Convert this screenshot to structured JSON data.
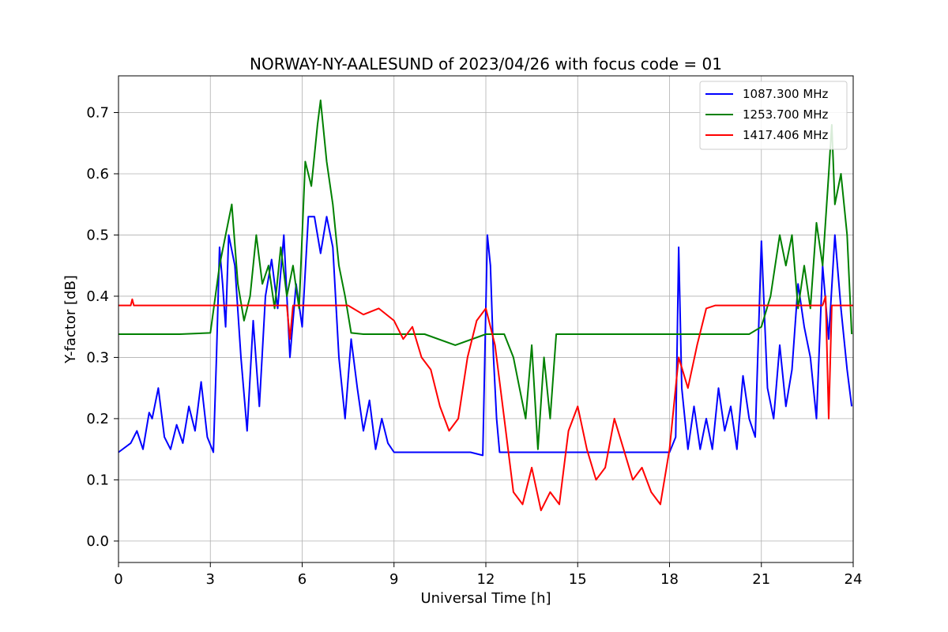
{
  "chart_data": {
    "type": "line",
    "title": "NORWAY-NY-AALESUND of 2023/04/26 with focus code = 01",
    "xlabel": "Universal Time [h]",
    "ylabel": "Y-factor [dB]",
    "xlim": [
      0,
      24
    ],
    "ylim": [
      -0.035,
      0.76
    ],
    "xticks": [
      0,
      3,
      6,
      9,
      12,
      15,
      18,
      21,
      24
    ],
    "xtick_labels": [
      "0",
      "3",
      "6",
      "9",
      "12",
      "15",
      "18",
      "21",
      "24"
    ],
    "yticks": [
      0.0,
      0.1,
      0.2,
      0.3,
      0.4,
      0.5,
      0.6,
      0.7
    ],
    "ytick_labels": [
      "0.0",
      "0.1",
      "0.2",
      "0.3",
      "0.4",
      "0.5",
      "0.6",
      "0.7"
    ],
    "grid": true,
    "legend_position": "top-right",
    "series": [
      {
        "name": "1087.300 MHz",
        "color": "#0000ff",
        "x": [
          0.0,
          0.4,
          0.6,
          0.8,
          1.0,
          1.1,
          1.3,
          1.5,
          1.7,
          1.9,
          2.1,
          2.3,
          2.5,
          2.7,
          2.9,
          3.1,
          3.2,
          3.3,
          3.4,
          3.5,
          3.6,
          3.8,
          4.0,
          4.2,
          4.4,
          4.6,
          4.8,
          5.0,
          5.2,
          5.4,
          5.6,
          5.8,
          6.0,
          6.2,
          6.4,
          6.6,
          6.8,
          7.0,
          7.2,
          7.4,
          7.6,
          7.8,
          8.0,
          8.2,
          8.4,
          8.6,
          8.8,
          9.0,
          10.0,
          11.0,
          11.5,
          11.9,
          12.05,
          12.15,
          12.25,
          12.35,
          12.45,
          12.6,
          13.0,
          14.0,
          15.0,
          16.0,
          17.0,
          17.5,
          17.8,
          18.0,
          18.2,
          18.3,
          18.4,
          18.6,
          18.8,
          19.0,
          19.2,
          19.4,
          19.6,
          19.8,
          20.0,
          20.2,
          20.4,
          20.6,
          20.8,
          21.0,
          21.2,
          21.4,
          21.6,
          21.8,
          22.0,
          22.2,
          22.4,
          22.6,
          22.8,
          23.0,
          23.2,
          23.4,
          23.6,
          23.8,
          23.95
        ],
        "y": [
          0.145,
          0.16,
          0.18,
          0.15,
          0.21,
          0.2,
          0.25,
          0.17,
          0.15,
          0.19,
          0.16,
          0.22,
          0.18,
          0.26,
          0.17,
          0.145,
          0.3,
          0.48,
          0.42,
          0.35,
          0.5,
          0.45,
          0.3,
          0.18,
          0.36,
          0.22,
          0.4,
          0.46,
          0.38,
          0.5,
          0.3,
          0.42,
          0.35,
          0.53,
          0.53,
          0.47,
          0.53,
          0.48,
          0.3,
          0.2,
          0.33,
          0.25,
          0.18,
          0.23,
          0.15,
          0.2,
          0.16,
          0.145,
          0.145,
          0.145,
          0.145,
          0.14,
          0.5,
          0.45,
          0.3,
          0.2,
          0.145,
          0.145,
          0.145,
          0.145,
          0.145,
          0.145,
          0.145,
          0.145,
          0.145,
          0.145,
          0.17,
          0.48,
          0.25,
          0.15,
          0.22,
          0.15,
          0.2,
          0.15,
          0.25,
          0.18,
          0.22,
          0.15,
          0.27,
          0.2,
          0.17,
          0.49,
          0.25,
          0.2,
          0.32,
          0.22,
          0.28,
          0.42,
          0.35,
          0.3,
          0.2,
          0.45,
          0.33,
          0.5,
          0.38,
          0.28,
          0.22
        ]
      },
      {
        "name": "1253.700 MHz",
        "color": "#008000",
        "x": [
          0.0,
          1.0,
          2.0,
          3.0,
          3.3,
          3.5,
          3.7,
          3.9,
          4.1,
          4.3,
          4.5,
          4.7,
          4.9,
          5.1,
          5.3,
          5.5,
          5.7,
          5.9,
          6.1,
          6.3,
          6.5,
          6.6,
          6.8,
          7.0,
          7.2,
          7.4,
          7.6,
          8.0,
          9.0,
          10.0,
          11.0,
          12.0,
          12.6,
          12.9,
          13.1,
          13.3,
          13.5,
          13.7,
          13.9,
          14.1,
          14.3,
          14.6,
          15.0,
          16.0,
          17.0,
          18.0,
          19.0,
          20.0,
          20.6,
          21.0,
          21.3,
          21.6,
          21.8,
          22.0,
          22.2,
          22.4,
          22.6,
          22.8,
          23.0,
          23.2,
          23.3,
          23.4,
          23.6,
          23.8,
          23.95
        ],
        "y": [
          0.338,
          0.338,
          0.338,
          0.34,
          0.45,
          0.5,
          0.55,
          0.42,
          0.36,
          0.4,
          0.5,
          0.42,
          0.45,
          0.38,
          0.48,
          0.4,
          0.45,
          0.38,
          0.62,
          0.58,
          0.68,
          0.72,
          0.62,
          0.55,
          0.45,
          0.4,
          0.34,
          0.338,
          0.338,
          0.338,
          0.32,
          0.338,
          0.338,
          0.3,
          0.25,
          0.2,
          0.32,
          0.15,
          0.3,
          0.2,
          0.338,
          0.338,
          0.338,
          0.338,
          0.338,
          0.338,
          0.338,
          0.338,
          0.338,
          0.35,
          0.4,
          0.5,
          0.45,
          0.5,
          0.38,
          0.45,
          0.38,
          0.52,
          0.45,
          0.6,
          0.68,
          0.55,
          0.6,
          0.5,
          0.338
        ]
      },
      {
        "name": "1417.406 MHz",
        "color": "#ff0000",
        "x": [
          0.0,
          0.4,
          0.45,
          0.5,
          3.0,
          5.5,
          5.6,
          5.7,
          6.0,
          7.0,
          7.5,
          8.0,
          8.5,
          9.0,
          9.3,
          9.6,
          9.9,
          10.2,
          10.5,
          10.8,
          11.1,
          11.4,
          11.7,
          12.0,
          12.3,
          12.6,
          12.9,
          13.2,
          13.5,
          13.8,
          14.1,
          14.4,
          14.7,
          15.0,
          15.3,
          15.6,
          15.9,
          16.2,
          16.5,
          16.8,
          17.1,
          17.4,
          17.7,
          18.0,
          18.3,
          18.6,
          18.9,
          19.2,
          19.5,
          19.8,
          20.2,
          21.0,
          22.0,
          23.0,
          23.1,
          23.2,
          23.3,
          23.6,
          24.0
        ],
        "y": [
          0.385,
          0.385,
          0.395,
          0.385,
          0.385,
          0.385,
          0.33,
          0.385,
          0.385,
          0.385,
          0.385,
          0.37,
          0.38,
          0.36,
          0.33,
          0.35,
          0.3,
          0.28,
          0.22,
          0.18,
          0.2,
          0.3,
          0.36,
          0.38,
          0.32,
          0.2,
          0.08,
          0.06,
          0.12,
          0.05,
          0.08,
          0.06,
          0.18,
          0.22,
          0.15,
          0.1,
          0.12,
          0.2,
          0.15,
          0.1,
          0.12,
          0.08,
          0.06,
          0.15,
          0.3,
          0.25,
          0.32,
          0.38,
          0.385,
          0.385,
          0.385,
          0.385,
          0.385,
          0.385,
          0.4,
          0.2,
          0.385,
          0.385,
          0.385
        ]
      }
    ]
  }
}
